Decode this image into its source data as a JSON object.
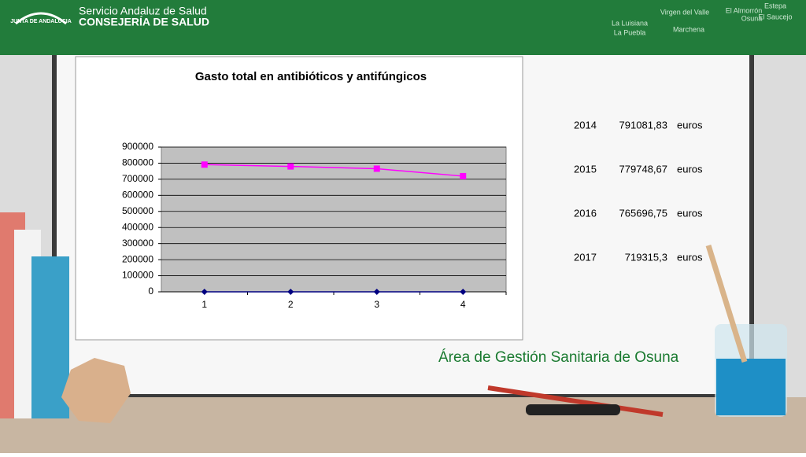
{
  "header": {
    "title": "Servicio Andaluz de Salud",
    "subtitle": "CONSEJERÍA DE SALUD",
    "logo_text": "JUNTA DE ANDALUCIA",
    "places": [
      "Estepa",
      "El Almorrón",
      "Virgen del Valle",
      "Osuna",
      "El Saucejo",
      "La Luisiana",
      "La Puebla",
      "Marchena"
    ]
  },
  "chart_data": {
    "type": "line",
    "title": "Gasto total en antibióticos y antifúngicos",
    "categories": [
      "1",
      "2",
      "3",
      "4"
    ],
    "series": [
      {
        "color": "#ff00ff",
        "marker": "square",
        "values": [
          791081.83,
          779748.67,
          765696.75,
          719315.3
        ]
      },
      {
        "color": "#000080",
        "marker": "diamond",
        "values": [
          0,
          0,
          0,
          0
        ]
      }
    ],
    "ylim": [
      0,
      900000
    ],
    "yticks": [
      0,
      100000,
      200000,
      300000,
      400000,
      500000,
      600000,
      700000,
      800000,
      900000
    ],
    "grid": true
  },
  "table": {
    "rows": [
      [
        "2014",
        "791081,83",
        "euros"
      ],
      [
        "2015",
        "779748,67",
        "euros"
      ],
      [
        "2016",
        "765696,75",
        "euros"
      ],
      [
        "2017",
        "719315,3",
        "euros"
      ]
    ]
  },
  "footer": {
    "text": "Área de Gestión Sanitaria de Osuna"
  }
}
